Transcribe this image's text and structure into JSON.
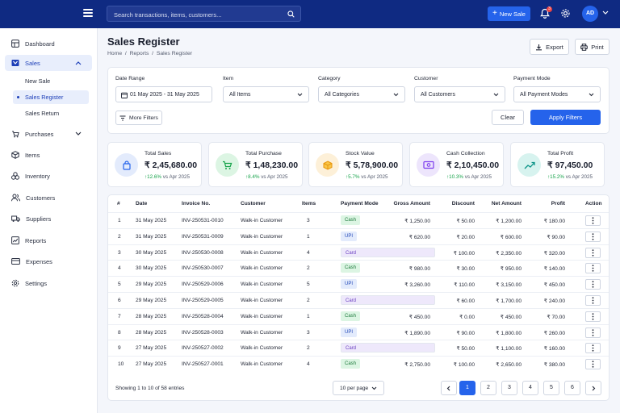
{
  "topbar": {
    "search_placeholder": "Search transactions, items, customers...",
    "new_sale_label": "New Sale",
    "notification_count": "3",
    "avatar_initials": "AD"
  },
  "sidebar": {
    "items": [
      {
        "label": "Dashboard",
        "icon": "grid-icon"
      },
      {
        "label": "Sales",
        "icon": "cart-icon",
        "active": true
      },
      {
        "label": "Purchases",
        "icon": "bag-icon"
      },
      {
        "label": "Items",
        "icon": "box-icon"
      },
      {
        "label": "Inventory",
        "icon": "layers-icon"
      },
      {
        "label": "Customers",
        "icon": "users-icon"
      },
      {
        "label": "Suppliers",
        "icon": "truck-icon"
      },
      {
        "label": "Reports",
        "icon": "chart-icon"
      },
      {
        "label": "Expenses",
        "icon": "wallet-icon"
      },
      {
        "label": "Settings",
        "icon": "gear-icon"
      }
    ],
    "sales_sub": [
      {
        "label": "New Sale"
      },
      {
        "label": "Sales Register",
        "active": true
      },
      {
        "label": "Sales Return"
      }
    ]
  },
  "page": {
    "title": "Sales Register",
    "breadcrumb": "Home  /  Reports  /  Sales Register",
    "export_label": "Export",
    "print_label": "Print"
  },
  "filters": {
    "date_range_label": "Date Range",
    "date_range_value": "01 May 2025 - 31 May 2025",
    "item_label": "Item",
    "item_value": "All Items",
    "category_label": "Category",
    "category_value": "All Categories",
    "customer_label": "Customer",
    "customer_value": "All Customers",
    "payment_mode_label": "Payment Mode",
    "payment_mode_value": "All Payment Modes",
    "more_filters_label": "More Filters",
    "clear_label": "Clear",
    "apply_label": "Apply Filters"
  },
  "stats": [
    {
      "label": "Total Sales",
      "value": "₹ 2,45,680.00",
      "change": "↑12.6%",
      "compare": " vs Apr 2025",
      "color": "#2563eb",
      "bg": "#e3ebfc",
      "icon": "bag-icon"
    },
    {
      "label": "Total Purchase",
      "value": "₹ 1,48,230.00",
      "change": "↑8.4%",
      "compare": " vs Apr 2025",
      "color": "#16a34a",
      "bg": "#dcf5e3",
      "icon": "cart-icon"
    },
    {
      "label": "Stock Value",
      "value": "₹ 5,78,900.00",
      "change": "↑5.7%",
      "compare": " vs Apr 2025",
      "color": "#e8950b",
      "bg": "#fdf0d8",
      "icon": "box-icon"
    },
    {
      "label": "Cash Collection",
      "value": "₹ 2,10,450.00",
      "change": "↑10.3%",
      "compare": " vs Apr 2025",
      "color": "#7c3aed",
      "bg": "#ede5fc",
      "icon": "cash-icon"
    },
    {
      "label": "Total Profit",
      "value": "₹ 97,450.00",
      "change": "↑15.2%",
      "compare": " vs Apr 2025",
      "color": "#0d9488",
      "bg": "#d7f3ef",
      "icon": "trend-icon"
    }
  ],
  "table": {
    "headers": [
      "#",
      "Date",
      "Invoice No.",
      "Customer",
      "Items",
      "Payment Mode",
      "Gross Amount",
      "Discount",
      "Net Amount",
      "Profit",
      "Action"
    ],
    "rows": [
      {
        "n": "1",
        "date": "31 May 2025",
        "invoice": "INV-250531-0010",
        "customer": "Walk-in Customer",
        "items": "3",
        "mode": "Cash",
        "gross": "₹ 1,250.00",
        "discount": "₹ 50.00",
        "net": "₹ 1,200.00",
        "profit": "₹ 180.00"
      },
      {
        "n": "2",
        "date": "31 May 2025",
        "invoice": "INV-250531-0009",
        "customer": "Walk-in Customer",
        "items": "1",
        "mode": "UPI",
        "gross": "₹ 620.00",
        "discount": "₹ 20.00",
        "net": "₹ 600.00",
        "profit": "₹ 90.00"
      },
      {
        "n": "3",
        "date": "30 May 2025",
        "invoice": "INV-250530-0008",
        "customer": "Walk-in Customer",
        "items": "4",
        "mode": "Card",
        "gross": "₹ 2,450.00",
        "discount": "₹ 100.00",
        "net": "₹ 2,350.00",
        "profit": "₹ 320.00"
      },
      {
        "n": "4",
        "date": "30 May 2025",
        "invoice": "INV-250530-0007",
        "customer": "Walk-in Customer",
        "items": "2",
        "mode": "Cash",
        "gross": "₹ 980.00",
        "discount": "₹ 30.00",
        "net": "₹ 950.00",
        "profit": "₹ 140.00"
      },
      {
        "n": "5",
        "date": "29 May 2025",
        "invoice": "INV-250529-0006",
        "customer": "Walk-in Customer",
        "items": "5",
        "mode": "UPI",
        "gross": "₹ 3,260.00",
        "discount": "₹ 110.00",
        "net": "₹ 3,150.00",
        "profit": "₹ 450.00"
      },
      {
        "n": "6",
        "date": "29 May 2025",
        "invoice": "INV-250529-0005",
        "customer": "Walk-in Customer",
        "items": "2",
        "mode": "Card",
        "gross": "₹ 1,760.00",
        "discount": "₹ 60.00",
        "net": "₹ 1,700.00",
        "profit": "₹ 240.00"
      },
      {
        "n": "7",
        "date": "28 May 2025",
        "invoice": "INV-250528-0004",
        "customer": "Walk-in Customer",
        "items": "1",
        "mode": "Cash",
        "gross": "₹ 450.00",
        "discount": "₹ 0.00",
        "net": "₹ 450.00",
        "profit": "₹ 70.00"
      },
      {
        "n": "8",
        "date": "28 May 2025",
        "invoice": "INV-250528-0003",
        "customer": "Walk-in Customer",
        "items": "3",
        "mode": "UPI",
        "gross": "₹ 1,890.00",
        "discount": "₹ 90.00",
        "net": "₹ 1,800.00",
        "profit": "₹ 260.00"
      },
      {
        "n": "9",
        "date": "27 May 2025",
        "invoice": "INV-250527-0002",
        "customer": "Walk-in Customer",
        "items": "2",
        "mode": "Card",
        "gross": "₹ 1,150.00",
        "discount": "₹ 50.00",
        "net": "₹ 1,100.00",
        "profit": "₹ 160.00"
      },
      {
        "n": "10",
        "date": "27 May 2025",
        "invoice": "INV-250527-0001",
        "customer": "Walk-in Customer",
        "items": "4",
        "mode": "Cash",
        "gross": "₹ 2,750.00",
        "discount": "₹ 100.00",
        "net": "₹ 2,650.00",
        "profit": "₹ 380.00"
      }
    ]
  },
  "footer": {
    "entries_info": "Showing 1 to 10 of 58 entries",
    "per_page": "10 per page",
    "pages": [
      "1",
      "2",
      "3",
      "4",
      "5",
      "6"
    ],
    "current_page": "1"
  }
}
